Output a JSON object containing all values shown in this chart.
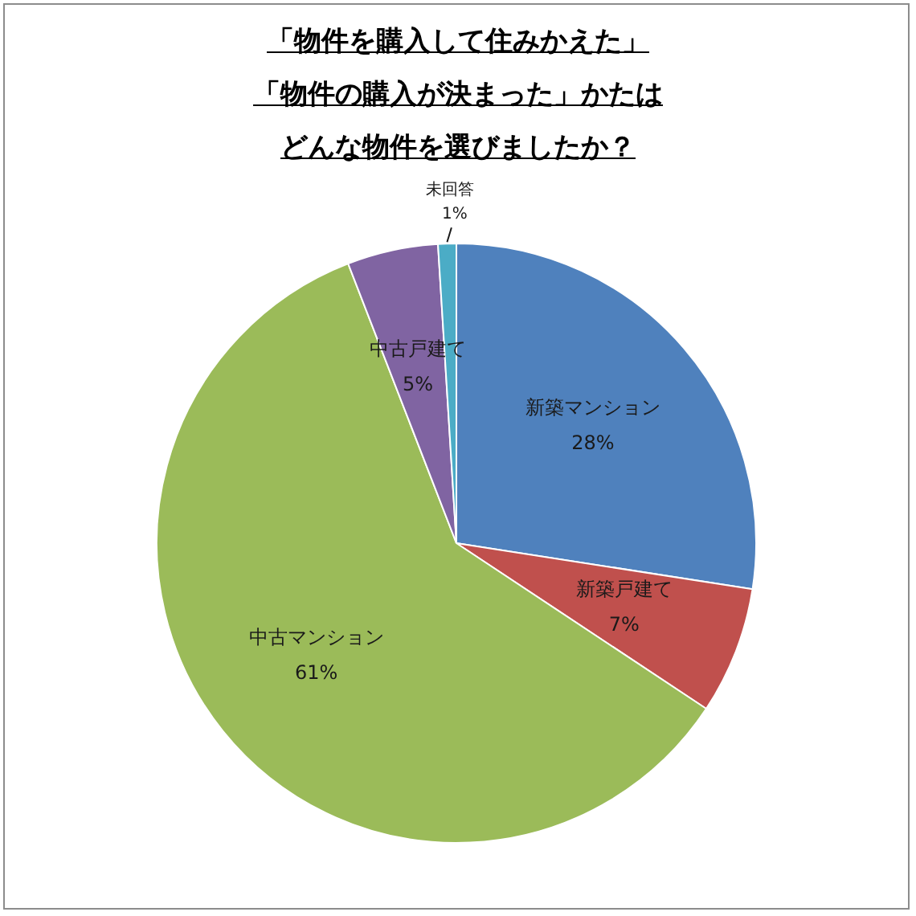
{
  "chart_data": {
    "type": "pie",
    "title": "「物件を購入して住みかえた」「物件の購入が決まった」かたはどんな物件を選びましたか？",
    "categories": [
      "新築マンション",
      "新築戸建て",
      "中古マンション",
      "中古戸建て",
      "未回答"
    ],
    "values": [
      28,
      7,
      61,
      5,
      1
    ],
    "colors": [
      "#4f81bd",
      "#c0504d",
      "#9bbb59",
      "#8064a2",
      "#4bacc6"
    ],
    "value_labels": [
      "28%",
      "7%",
      "61%",
      "5%",
      "1%"
    ]
  }
}
